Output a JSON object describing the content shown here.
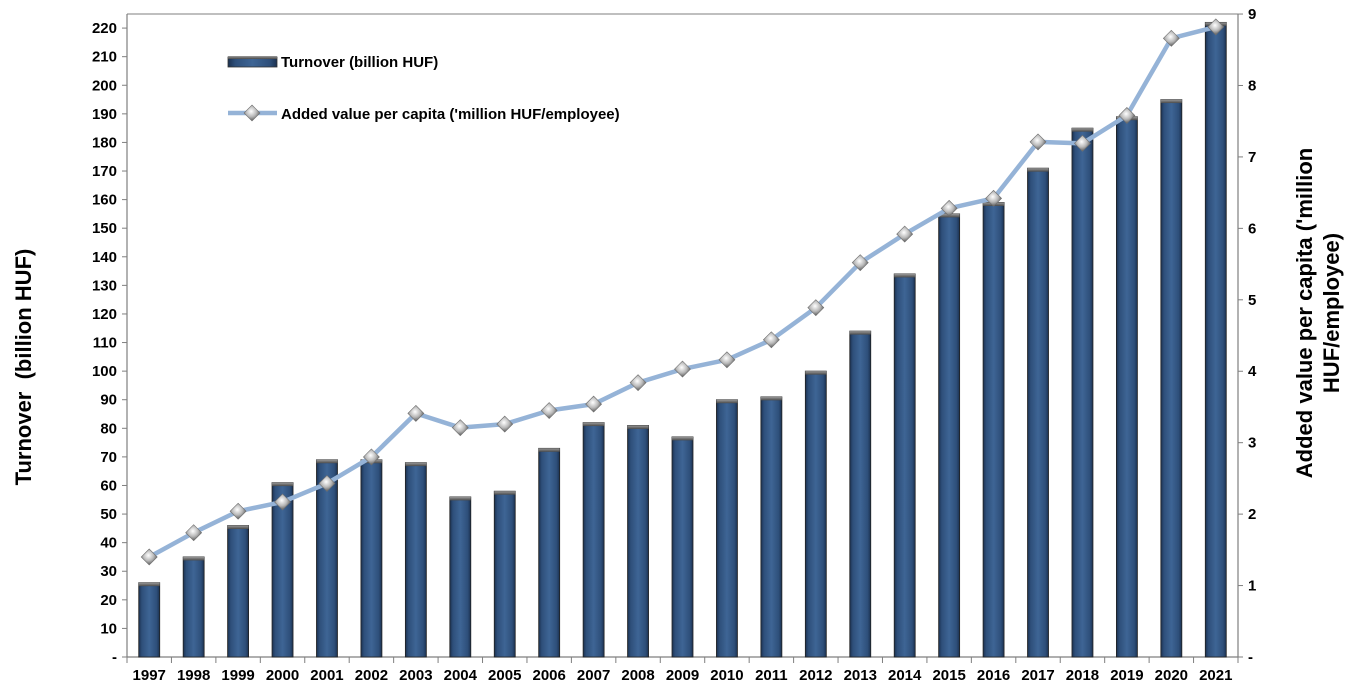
{
  "chart_data": {
    "type": "bar",
    "categories": [
      "1997",
      "1998",
      "1999",
      "2000",
      "2001",
      "2002",
      "2003",
      "2004",
      "2005",
      "2006",
      "2007",
      "2008",
      "2009",
      "2010",
      "2011",
      "2012",
      "2013",
      "2014",
      "2015",
      "2016",
      "2017",
      "2018",
      "2019",
      "2020",
      "2021"
    ],
    "series": [
      {
        "name": "Turnover (billion HUF)",
        "type": "bar",
        "axis": "left",
        "color": "#2e4f7a",
        "values": [
          26,
          35,
          46,
          61,
          69,
          69,
          68,
          56,
          58,
          73,
          82,
          81,
          77,
          90,
          91,
          100,
          114,
          134,
          155,
          159,
          171,
          185,
          189,
          195,
          222
        ]
      },
      {
        "name": "Added value per capita ('million HUF/employee)",
        "type": "line",
        "axis": "right",
        "color": "#95b3d7",
        "values": [
          1.4,
          1.74,
          2.04,
          2.17,
          2.43,
          2.8,
          3.41,
          3.21,
          3.26,
          3.45,
          3.54,
          3.84,
          4.03,
          4.16,
          4.44,
          4.89,
          5.52,
          5.92,
          6.28,
          6.42,
          7.21,
          7.19,
          7.58,
          8.66,
          8.82
        ]
      }
    ],
    "y_left": {
      "label": "Turnover  (billion HUF)",
      "ylim": [
        0,
        225
      ],
      "ticks": [
        "-",
        "10",
        "20",
        "30",
        "40",
        "50",
        "60",
        "70",
        "80",
        "90",
        "100",
        "110",
        "120",
        "130",
        "140",
        "150",
        "160",
        "170",
        "180",
        "190",
        "200",
        "210",
        "220"
      ]
    },
    "y_right": {
      "label_line1": "Added value per capita ('million",
      "label_line2": "HUF/employee)",
      "ylim": [
        0,
        9
      ],
      "ticks": [
        "-",
        "1",
        "2",
        "3",
        "4",
        "5",
        "6",
        "7",
        "8",
        "9"
      ]
    },
    "legend": {
      "position": "top-left",
      "bar_label": "Turnover (billion HUF)",
      "line_label": "Added value per capita ('million HUF/employee)"
    },
    "grid": false
  }
}
